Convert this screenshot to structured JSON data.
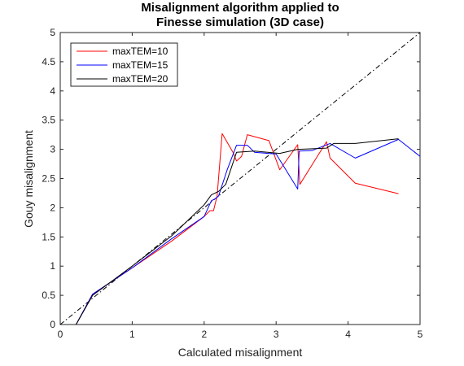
{
  "chart_data": {
    "type": "line",
    "title": [
      "Misalignment algorithm applied to",
      "Finesse simulation (3D case)"
    ],
    "xlabel": "Calculated misalignment",
    "ylabel": "Gouy misalignment",
    "xlim": [
      0,
      5
    ],
    "ylim": [
      0,
      5
    ],
    "xticks": [
      "0",
      "1",
      "2",
      "3",
      "4",
      "5"
    ],
    "yticks": [
      "0",
      "0.5",
      "1",
      "1.5",
      "2",
      "2.5",
      "3",
      "3.5",
      "4",
      "4.5",
      "5"
    ],
    "grid": false,
    "legend_position": "top-left",
    "reference_line": {
      "style": "dash-dot",
      "color": "#000000",
      "x": [
        0,
        5
      ],
      "y": [
        0,
        5
      ]
    },
    "series": [
      {
        "name": "maxTEM=10",
        "color": "#ff0000",
        "x": [
          0.22,
          0.45,
          1.0,
          1.55,
          2.0,
          2.08,
          2.13,
          2.18,
          2.25,
          2.4,
          2.45,
          2.52,
          2.6,
          2.9,
          3.05,
          3.3,
          3.33,
          3.7,
          3.75,
          4.1,
          4.7
        ],
        "y": [
          0.0,
          0.52,
          0.97,
          1.43,
          1.85,
          1.95,
          1.95,
          2.2,
          3.27,
          2.95,
          2.8,
          2.88,
          3.25,
          3.15,
          2.65,
          3.08,
          2.4,
          3.13,
          2.85,
          2.42,
          2.24
        ]
      },
      {
        "name": "maxTEM=15",
        "color": "#0000ff",
        "x": [
          0.22,
          0.45,
          1.0,
          1.55,
          2.0,
          2.1,
          2.15,
          2.2,
          2.32,
          2.45,
          2.6,
          2.7,
          3.0,
          3.3,
          3.32,
          3.5,
          3.75,
          4.1,
          4.7,
          5.0
        ],
        "y": [
          0.0,
          0.52,
          0.97,
          1.47,
          1.85,
          2.12,
          2.15,
          2.2,
          2.65,
          3.07,
          3.07,
          2.95,
          2.92,
          2.32,
          2.97,
          2.98,
          3.1,
          2.85,
          3.17,
          2.88
        ]
      },
      {
        "name": "maxTEM=20",
        "color": "#000000",
        "x": [
          0.22,
          0.45,
          1.0,
          1.55,
          2.0,
          2.1,
          2.2,
          2.3,
          2.45,
          2.7,
          3.05,
          3.3,
          3.7,
          3.8,
          4.1,
          4.7
        ],
        "y": [
          0.0,
          0.5,
          1.0,
          1.52,
          2.05,
          2.22,
          2.28,
          2.4,
          2.95,
          2.97,
          2.93,
          3.0,
          3.02,
          3.1,
          3.1,
          3.18
        ]
      }
    ]
  }
}
